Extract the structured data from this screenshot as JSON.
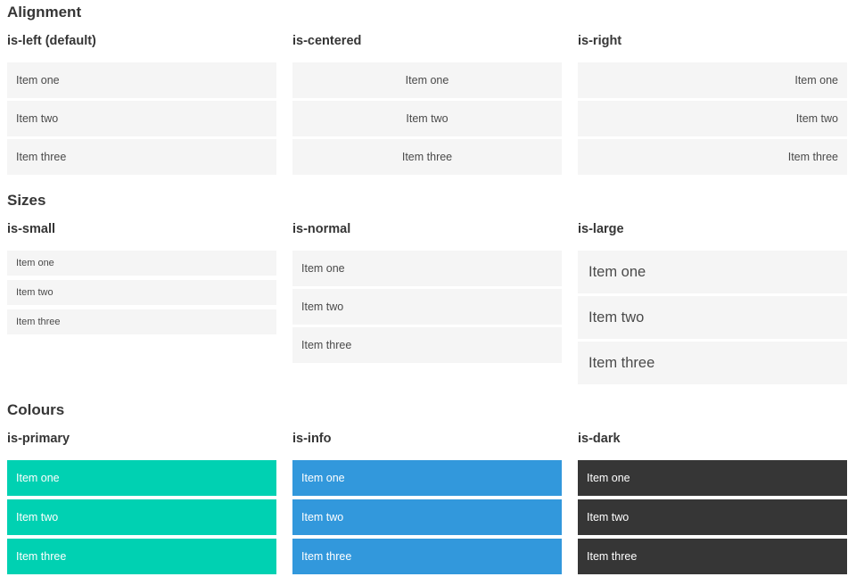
{
  "colors": {
    "primary": "#00d1b2",
    "info": "#3298dc",
    "dark": "#363636",
    "item_background": "#f5f5f5",
    "item_text": "#4a4a4a",
    "heading_text": "#363636",
    "colored_item_text": "#ffffff"
  },
  "sections": [
    {
      "title": "Alignment",
      "groups": [
        {
          "label": "is-left (default)",
          "variant": "left",
          "items": [
            "Item one",
            "Item two",
            "Item three"
          ]
        },
        {
          "label": "is-centered",
          "variant": "centered",
          "items": [
            "Item one",
            "Item two",
            "Item three"
          ]
        },
        {
          "label": "is-right",
          "variant": "right",
          "items": [
            "Item one",
            "Item two",
            "Item three"
          ]
        }
      ]
    },
    {
      "title": "Sizes",
      "groups": [
        {
          "label": "is-small",
          "variant": "small",
          "items": [
            "Item one",
            "Item two",
            "Item three"
          ]
        },
        {
          "label": "is-normal",
          "variant": "normal",
          "items": [
            "Item one",
            "Item two",
            "Item three"
          ]
        },
        {
          "label": "is-large",
          "variant": "large",
          "items": [
            "Item one",
            "Item two",
            "Item three"
          ]
        }
      ]
    },
    {
      "title": "Colours",
      "groups": [
        {
          "label": "is-primary",
          "variant": "primary",
          "items": [
            "Item one",
            "Item two",
            "Item three"
          ]
        },
        {
          "label": "is-info",
          "variant": "info",
          "items": [
            "Item one",
            "Item two",
            "Item three"
          ]
        },
        {
          "label": "is-dark",
          "variant": "dark",
          "items": [
            "Item one",
            "Item two",
            "Item three"
          ]
        }
      ]
    }
  ]
}
